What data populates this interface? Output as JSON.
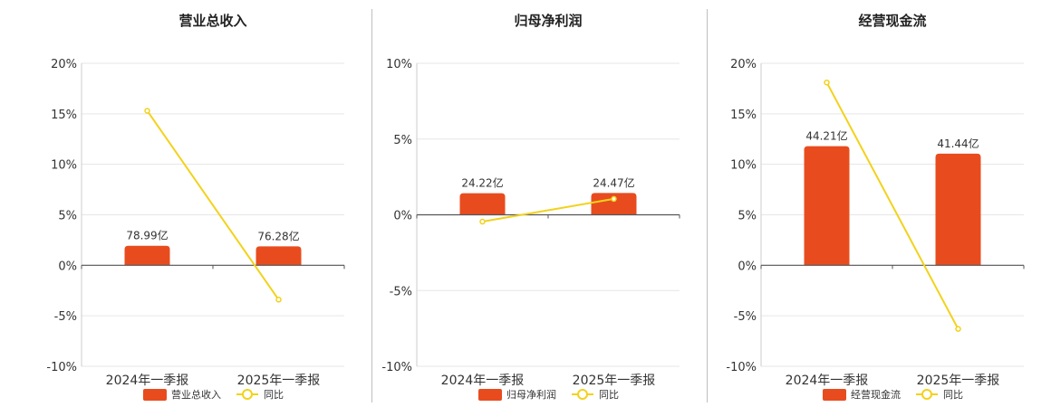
{
  "chart_data": [
    {
      "type": "bar",
      "title": "营业总收入",
      "categories": [
        "2024年一季报",
        "2025年一季报"
      ],
      "bar_series": {
        "name": "营业总收入",
        "labels": [
          "78.99亿",
          "76.28亿"
        ],
        "values": [
          78.99,
          76.28
        ]
      },
      "line_series": {
        "name": "同比",
        "values": [
          15.3,
          -3.4
        ]
      },
      "y_ticks": [
        "20%",
        "15%",
        "10%",
        "5%",
        "0%",
        "-5%",
        "-10%"
      ],
      "ylim": [
        -10,
        20
      ],
      "bar_color": "#e84c1e",
      "line_color": "#f2d21b",
      "grid": true,
      "legend": "bottom-center"
    },
    {
      "type": "bar",
      "title": "归母净利润",
      "categories": [
        "2024年一季报",
        "2025年一季报"
      ],
      "bar_series": {
        "name": "归母净利润",
        "labels": [
          "24.22亿",
          "24.47亿"
        ],
        "values": [
          24.22,
          24.47
        ]
      },
      "line_series": {
        "name": "同比",
        "values": [
          -0.45,
          1.05
        ]
      },
      "y_ticks": [
        "10%",
        "5%",
        "0%",
        "-5%",
        "-10%"
      ],
      "ylim": [
        -10,
        10
      ],
      "bar_color": "#e84c1e",
      "line_color": "#f2d21b",
      "grid": true,
      "legend": "bottom-center"
    },
    {
      "type": "bar",
      "title": "经营现金流",
      "categories": [
        "2024年一季报",
        "2025年一季报"
      ],
      "bar_series": {
        "name": "经营现金流",
        "labels": [
          "44.21亿",
          "41.44亿"
        ],
        "values": [
          44.21,
          41.44
        ]
      },
      "line_series": {
        "name": "同比",
        "values": [
          18.1,
          -6.3
        ]
      },
      "y_ticks": [
        "20%",
        "15%",
        "10%",
        "5%",
        "0%",
        "-5%",
        "-10%"
      ],
      "ylim": [
        -10,
        20
      ],
      "bar_color": "#e84c1e",
      "line_color": "#f2d21b",
      "grid": true,
      "legend": "bottom-center"
    }
  ]
}
